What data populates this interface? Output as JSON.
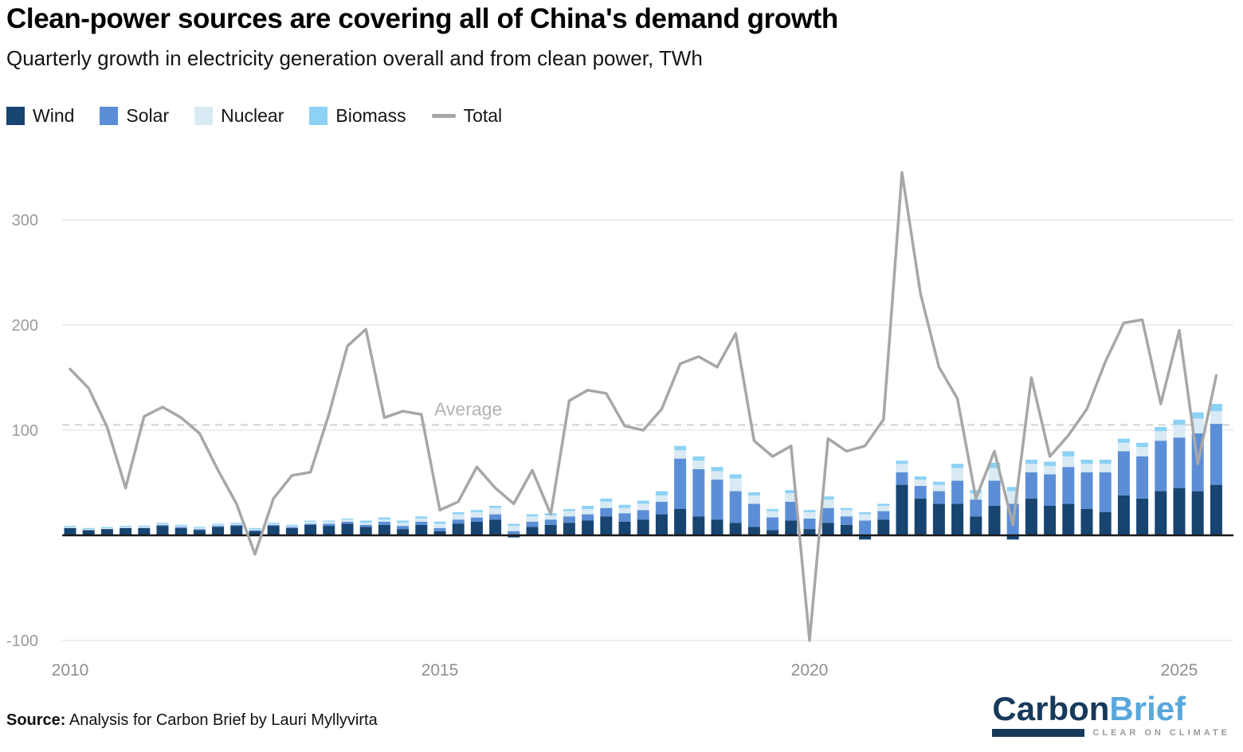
{
  "header": {
    "title": "Clean-power sources are covering all of China's demand growth",
    "subtitle": "Quarterly growth in electricity generation overall and from clean power, TWh"
  },
  "legend": {
    "items": [
      {
        "label": "Wind",
        "color": "#174470",
        "type": "square"
      },
      {
        "label": "Solar",
        "color": "#5b8ed6",
        "type": "square"
      },
      {
        "label": "Nuclear",
        "color": "#d9eaf4",
        "type": "square"
      },
      {
        "label": "Biomass",
        "color": "#8cd2f5",
        "type": "square"
      },
      {
        "label": "Total",
        "color": "#a7a7a7",
        "type": "line"
      }
    ]
  },
  "annotations": {
    "average_label": "Average"
  },
  "chart_data": {
    "type": "combo-stacked-bar-line",
    "title": "Clean-power sources are covering all of China's demand growth",
    "subtitle": "Quarterly growth in electricity generation overall and from clean power, TWh",
    "ylabel": "TWh",
    "ylim": [
      -115,
      355
    ],
    "yticks": [
      300,
      200,
      100,
      -100
    ],
    "xticks": [
      "2010",
      "2015",
      "2020",
      "2025"
    ],
    "xtick_indices": [
      0,
      20,
      40,
      60
    ],
    "average": 105,
    "legend_position": "top-left",
    "grid": true,
    "x": [
      "2010 Q1",
      "2010 Q2",
      "2010 Q3",
      "2010 Q4",
      "2011 Q1",
      "2011 Q2",
      "2011 Q3",
      "2011 Q4",
      "2012 Q1",
      "2012 Q2",
      "2012 Q3",
      "2012 Q4",
      "2013 Q1",
      "2013 Q2",
      "2013 Q3",
      "2013 Q4",
      "2014 Q1",
      "2014 Q2",
      "2014 Q3",
      "2014 Q4",
      "2015 Q1",
      "2015 Q2",
      "2015 Q3",
      "2015 Q4",
      "2016 Q1",
      "2016 Q2",
      "2016 Q3",
      "2016 Q4",
      "2017 Q1",
      "2017 Q2",
      "2017 Q3",
      "2017 Q4",
      "2018 Q1",
      "2018 Q2",
      "2018 Q3",
      "2018 Q4",
      "2019 Q1",
      "2019 Q2",
      "2019 Q3",
      "2019 Q4",
      "2020 Q1",
      "2020 Q2",
      "2020 Q3",
      "2020 Q4",
      "2021 Q1",
      "2021 Q2",
      "2021 Q3",
      "2021 Q4",
      "2022 Q1",
      "2022 Q2",
      "2022 Q3",
      "2022 Q4",
      "2023 Q1",
      "2023 Q2",
      "2023 Q3",
      "2023 Q4",
      "2024 Q1",
      "2024 Q2",
      "2024 Q3",
      "2024 Q4",
      "2025 Q1",
      "2025 Q2",
      "2025 Q3"
    ],
    "series": [
      {
        "name": "Wind",
        "color": "#174470",
        "values": [
          7,
          5,
          6,
          7,
          7,
          9,
          7,
          5,
          8,
          9,
          4,
          9,
          7,
          10,
          9,
          11,
          8,
          10,
          6,
          10,
          4,
          11,
          13,
          15,
          -2,
          8,
          10,
          12,
          14,
          18,
          13,
          15,
          20,
          25,
          18,
          15,
          12,
          8,
          5,
          14,
          6,
          12,
          10,
          -4,
          15,
          48,
          35,
          30,
          30,
          18,
          28,
          -4,
          35,
          28,
          30,
          25,
          22,
          38,
          35,
          42,
          45,
          42,
          48
        ]
      },
      {
        "name": "Solar",
        "color": "#5b8ed6",
        "values": [
          0,
          0,
          0,
          0,
          0,
          1,
          1,
          1,
          1,
          1,
          1,
          1,
          1,
          1,
          2,
          2,
          2,
          3,
          3,
          3,
          3,
          4,
          4,
          5,
          4,
          5,
          5,
          6,
          6,
          8,
          8,
          9,
          12,
          48,
          45,
          38,
          30,
          22,
          12,
          18,
          10,
          14,
          8,
          14,
          8,
          12,
          12,
          12,
          22,
          16,
          24,
          30,
          25,
          30,
          35,
          35,
          38,
          42,
          40,
          48,
          48,
          55,
          58
        ]
      },
      {
        "name": "Nuclear",
        "color": "#d9eaf4",
        "values": [
          1,
          1,
          1,
          1,
          1,
          1,
          1,
          1,
          1,
          1,
          1,
          1,
          1,
          2,
          2,
          2,
          2,
          2,
          3,
          3,
          4,
          5,
          5,
          6,
          5,
          5,
          4,
          5,
          5,
          6,
          5,
          6,
          6,
          8,
          8,
          8,
          12,
          8,
          6,
          8,
          6,
          8,
          6,
          6,
          5,
          8,
          6,
          6,
          12,
          6,
          12,
          12,
          8,
          8,
          10,
          8,
          8,
          8,
          9,
          9,
          12,
          14,
          12
        ]
      },
      {
        "name": "Biomass",
        "color": "#8cd2f5",
        "values": [
          1,
          1,
          1,
          1,
          1,
          1,
          1,
          1,
          1,
          1,
          1,
          1,
          1,
          1,
          1,
          1,
          2,
          2,
          2,
          2,
          2,
          2,
          2,
          2,
          2,
          2,
          2,
          2,
          3,
          3,
          3,
          3,
          4,
          4,
          4,
          4,
          4,
          3,
          2,
          3,
          2,
          3,
          2,
          2,
          2,
          3,
          3,
          3,
          4,
          3,
          5,
          4,
          4,
          4,
          5,
          4,
          4,
          4,
          4,
          4,
          5,
          6,
          7
        ]
      }
    ],
    "line": {
      "name": "Total",
      "color": "#a7a7a7",
      "values": [
        158,
        140,
        103,
        45,
        113,
        122,
        112,
        97,
        62,
        30,
        -18,
        35,
        57,
        60,
        115,
        180,
        196,
        112,
        118,
        115,
        24,
        32,
        65,
        45,
        30,
        62,
        20,
        128,
        138,
        135,
        104,
        100,
        120,
        163,
        170,
        160,
        192,
        90,
        75,
        85,
        -100,
        92,
        80,
        85,
        110,
        345,
        230,
        160,
        130,
        35,
        80,
        10,
        150,
        75,
        95,
        120,
        165,
        202,
        205,
        125,
        195,
        68,
        152
      ]
    },
    "colors": {
      "grid": "#e4e4e4",
      "axis": "#1a1a1a",
      "average": "#d9d9d9",
      "total": "#a7a7a7",
      "tick_label": "#9a9a9a",
      "average_label": "#b3b3b3"
    }
  },
  "footer": {
    "source_label": "Source:",
    "source_text": " Analysis for Carbon Brief by Lauri Myllyvirta"
  },
  "logo": {
    "part1": "Carbon",
    "part2": "Brief",
    "tagline": "CLEAR ON CLIMATE"
  }
}
